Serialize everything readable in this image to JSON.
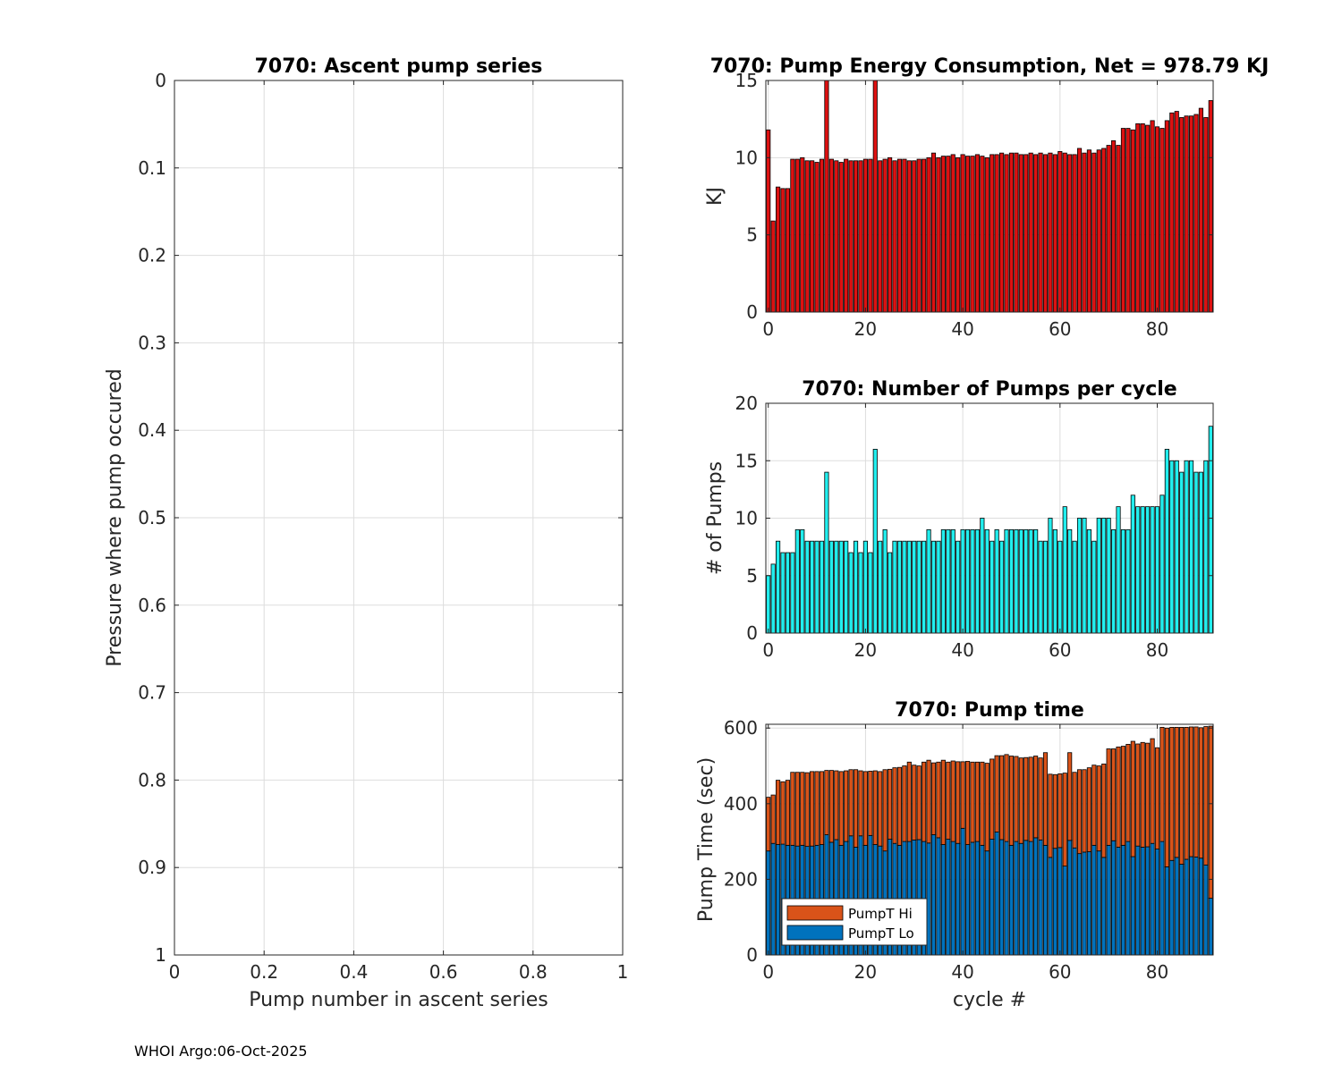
{
  "footer": "WHOI Argo:06-Oct-2025",
  "colors": {
    "energy": "#dd1111",
    "pumps": "#22eeee",
    "hi": "#d95319",
    "lo": "#0072bd",
    "grid": "#dddddd"
  },
  "chart_data": [
    {
      "id": "ascent",
      "type": "scatter",
      "title": "7070: Ascent pump series",
      "xlabel": "Pump number in ascent series",
      "ylabel": "Pressure where pump occured",
      "xlim": [
        0,
        1
      ],
      "ylim": [
        0,
        1
      ],
      "y_reversed": true,
      "xticks": [
        "0",
        "0.2",
        "0.4",
        "0.6",
        "0.8",
        "1"
      ],
      "yticks": [
        "0",
        "0.1",
        "0.2",
        "0.3",
        "0.4",
        "0.5",
        "0.6",
        "0.7",
        "0.8",
        "0.9",
        "1"
      ],
      "grid": true,
      "points": []
    },
    {
      "id": "energy",
      "type": "bar",
      "title": "7070: Pump Energy Consumption,  Net = 978.79 KJ",
      "xlabel": "",
      "ylabel": "KJ",
      "xlim": [
        -0.5,
        91.5
      ],
      "ylim": [
        0,
        15
      ],
      "xticks": [
        "0",
        "20",
        "40",
        "60",
        "80"
      ],
      "yticks": [
        "0",
        "5",
        "10",
        "15"
      ],
      "grid": true,
      "x_start": 0,
      "values": [
        11.8,
        5.9,
        8.1,
        8.0,
        8.0,
        9.9,
        9.9,
        10.0,
        9.8,
        9.8,
        9.7,
        9.9,
        15.0,
        9.9,
        9.8,
        9.7,
        9.9,
        9.8,
        9.8,
        9.8,
        9.9,
        9.9,
        15.0,
        9.8,
        9.9,
        10.0,
        9.8,
        9.9,
        9.9,
        9.8,
        9.8,
        9.9,
        9.9,
        10.0,
        10.3,
        10.0,
        10.1,
        10.1,
        10.2,
        10.0,
        10.2,
        10.1,
        10.1,
        10.2,
        10.1,
        10.0,
        10.2,
        10.2,
        10.3,
        10.2,
        10.3,
        10.3,
        10.2,
        10.2,
        10.3,
        10.2,
        10.3,
        10.2,
        10.3,
        10.2,
        10.4,
        10.3,
        10.2,
        10.2,
        10.6,
        10.3,
        10.5,
        10.3,
        10.5,
        10.6,
        10.8,
        11.1,
        10.8,
        11.9,
        11.9,
        11.8,
        12.2,
        12.2,
        12.1,
        12.4,
        12.0,
        11.9,
        12.4,
        12.9,
        13.0,
        12.6,
        12.7,
        12.7,
        12.8,
        13.2,
        12.6,
        13.7
      ]
    },
    {
      "id": "pumps",
      "type": "bar",
      "title": "7070: Number of Pumps per cycle",
      "xlabel": "",
      "ylabel": "# of Pumps",
      "xlim": [
        -0.5,
        91.5
      ],
      "ylim": [
        0,
        20
      ],
      "xticks": [
        "0",
        "20",
        "40",
        "60",
        "80"
      ],
      "yticks": [
        "0",
        "5",
        "10",
        "15",
        "20"
      ],
      "grid": true,
      "x_start": 0,
      "values": [
        5,
        6,
        8,
        7,
        7,
        7,
        9,
        9,
        8,
        8,
        8,
        8,
        14,
        8,
        8,
        8,
        8,
        7,
        8,
        7,
        8,
        7,
        16,
        8,
        9,
        7,
        8,
        8,
        8,
        8,
        8,
        8,
        8,
        9,
        8,
        8,
        9,
        9,
        9,
        8,
        9,
        9,
        9,
        9,
        10,
        9,
        8,
        9,
        8,
        9,
        9,
        9,
        9,
        9,
        9,
        9,
        8,
        8,
        10,
        9,
        8,
        11,
        9,
        8,
        10,
        10,
        9,
        8,
        10,
        10,
        10,
        9,
        11,
        9,
        9,
        12,
        11,
        11,
        11,
        11,
        11,
        12,
        16,
        15,
        15,
        14,
        15,
        15,
        14,
        14,
        15,
        18
      ]
    },
    {
      "id": "pumptime",
      "type": "bar",
      "stacked": true,
      "title": "7070: Pump time",
      "xlabel": "cycle #",
      "ylabel": "Pump Time (sec)",
      "xlim": [
        -0.5,
        91.5
      ],
      "ylim": [
        0,
        610
      ],
      "xticks": [
        "0",
        "20",
        "40",
        "60",
        "80"
      ],
      "yticks": [
        "0",
        "200",
        "400",
        "600"
      ],
      "ytick_values": [
        0,
        200,
        400,
        600
      ],
      "grid": true,
      "legend": {
        "position": "bottom-left",
        "entries": [
          "PumpT Hi",
          "PumpT Lo"
        ]
      },
      "x_start": 0,
      "series": [
        {
          "name": "PumpT Lo",
          "values": [
            275,
            295,
            292,
            293,
            290,
            290,
            288,
            290,
            287,
            288,
            290,
            292,
            318,
            298,
            305,
            290,
            300,
            315,
            285,
            315,
            290,
            316,
            292,
            288,
            275,
            306,
            295,
            290,
            300,
            300,
            304,
            305,
            300,
            296,
            318,
            310,
            292,
            306,
            300,
            295,
            335,
            292,
            298,
            300,
            290,
            275,
            306,
            325,
            305,
            300,
            290,
            300,
            295,
            303,
            300,
            310,
            304,
            290,
            258,
            282,
            284,
            235,
            303,
            283,
            268,
            272,
            273,
            290,
            275,
            258,
            290,
            302,
            285,
            290,
            300,
            260,
            288,
            285,
            286,
            295,
            280,
            300,
            233,
            250,
            258,
            240,
            253,
            260,
            259,
            256,
            238,
            150
          ]
        },
        {
          "name": "PumpT Hi",
          "values": [
            142,
            128,
            170,
            165,
            172,
            193,
            195,
            193,
            195,
            197,
            195,
            193,
            170,
            190,
            182,
            195,
            187,
            175,
            205,
            172,
            195,
            170,
            195,
            197,
            215,
            185,
            200,
            206,
            200,
            210,
            198,
            195,
            210,
            219,
            190,
            200,
            223,
            204,
            213,
            216,
            176,
            220,
            212,
            210,
            220,
            232,
            212,
            202,
            222,
            230,
            236,
            225,
            226,
            219,
            223,
            216,
            217,
            245,
            220,
            195,
            195,
            246,
            232,
            200,
            222,
            218,
            222,
            212,
            225,
            247,
            255,
            243,
            265,
            262,
            257,
            305,
            270,
            277,
            274,
            277,
            268,
            302,
            367,
            352,
            344,
            362,
            349,
            343,
            344,
            345,
            366,
            455
          ]
        }
      ]
    }
  ]
}
